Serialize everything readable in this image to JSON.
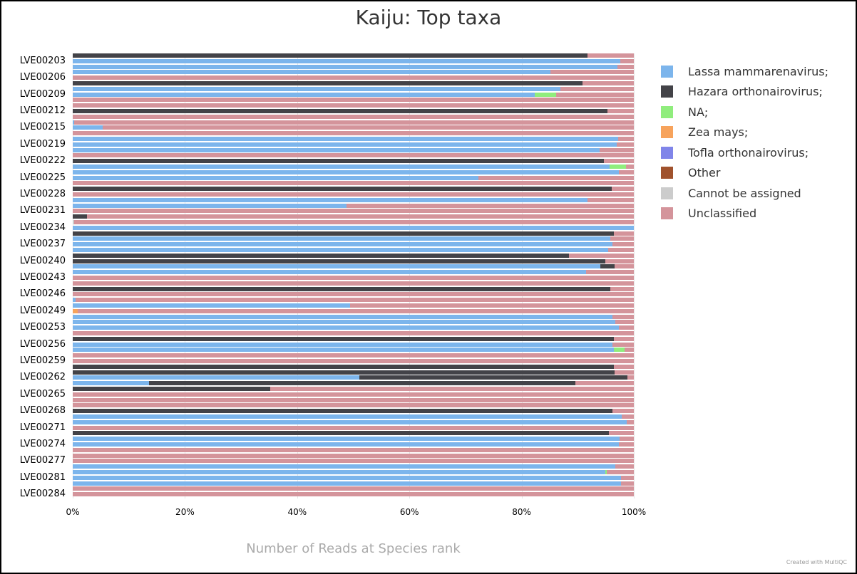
{
  "chart_data": {
    "type": "bar",
    "orientation": "horizontal",
    "stacking": "percent",
    "title": "Kaiju: Top taxa",
    "xlabel": "Number of Reads at Species rank",
    "ylabel": "",
    "xlim": [
      0,
      100
    ],
    "x_ticks": [
      "0%",
      "20%",
      "40%",
      "60%",
      "80%",
      "100%"
    ],
    "grid": true,
    "legend_position": "right",
    "series_names": [
      "Lassa mammarenavirus;",
      "Hazara orthonairovirus;",
      "NA;",
      "Zea mays;",
      "Tofla orthonairovirus;",
      "Other",
      "Cannot be assigned",
      "Unclassified"
    ],
    "colors": [
      "#7cb5ec",
      "#434348",
      "#90ed7d",
      "#f7a35c",
      "#8085e9",
      "#a0522d",
      "#cccccc",
      "#d4949b"
    ],
    "visible_category_labels": [
      "LVE00203",
      "LVE00206",
      "LVE00209",
      "LVE00212",
      "LVE00215",
      "LVE00219",
      "LVE00222",
      "LVE00225",
      "LVE00228",
      "LVE00231",
      "LVE00234",
      "LVE00237",
      "LVE00240",
      "LVE00243",
      "LVE00246",
      "LVE00249",
      "LVE00253",
      "LVE00256",
      "LVE00259",
      "LVE00262",
      "LVE00265",
      "LVE00268",
      "LVE00271",
      "LVE00274",
      "LVE00277",
      "LVE00281",
      "LVE00284"
    ],
    "label_every": 3,
    "label_offset": 1,
    "bars": [
      {
        "lassa": 0,
        "hazara": 91.8,
        "na": 0,
        "zea": 0,
        "cannot": 0
      },
      {
        "lassa": 97.6,
        "hazara": 0,
        "na": 0,
        "zea": 0,
        "cannot": 0
      },
      {
        "lassa": 97.1,
        "hazara": 0,
        "na": 0,
        "zea": 0,
        "cannot": 0
      },
      {
        "lassa": 85.1,
        "hazara": 0,
        "na": 0,
        "zea": 0,
        "cannot": 0
      },
      {
        "lassa": 0,
        "hazara": 0,
        "na": 0,
        "zea": 0,
        "cannot": 0
      },
      {
        "lassa": 0,
        "hazara": 90.9,
        "na": 0,
        "zea": 0,
        "cannot": 0
      },
      {
        "lassa": 86.9,
        "hazara": 0,
        "na": 0,
        "zea": 0,
        "cannot": 0
      },
      {
        "lassa": 82.4,
        "hazara": 0,
        "na": 3.7,
        "zea": 0,
        "cannot": 0
      },
      {
        "lassa": 0,
        "hazara": 0,
        "na": 0,
        "zea": 0,
        "cannot": 0
      },
      {
        "lassa": 0,
        "hazara": 0,
        "na": 0,
        "zea": 0,
        "cannot": 0
      },
      {
        "lassa": 0,
        "hazara": 95.3,
        "na": 0,
        "zea": 0,
        "cannot": 0
      },
      {
        "lassa": 0,
        "hazara": 0,
        "na": 0,
        "zea": 0,
        "cannot": 0
      },
      {
        "lassa": 0.3,
        "hazara": 0,
        "na": 0,
        "zea": 0,
        "cannot": 0
      },
      {
        "lassa": 5.3,
        "hazara": 0,
        "na": 0.1,
        "zea": 0,
        "cannot": 0
      },
      {
        "lassa": 0,
        "hazara": 0,
        "na": 0,
        "zea": 0,
        "cannot": 0
      },
      {
        "lassa": 97.2,
        "hazara": 0,
        "na": 0,
        "zea": 0,
        "cannot": 0
      },
      {
        "lassa": 96.9,
        "hazara": 0,
        "na": 0,
        "zea": 0,
        "cannot": 0
      },
      {
        "lassa": 93.9,
        "hazara": 0,
        "na": 0,
        "zea": 0,
        "cannot": 0
      },
      {
        "lassa": 0,
        "hazara": 0,
        "na": 0,
        "zea": 0,
        "cannot": 0
      },
      {
        "lassa": 0,
        "hazara": 94.6,
        "na": 0,
        "zea": 0,
        "cannot": 0
      },
      {
        "lassa": 95.7,
        "hazara": 0,
        "na": 2.9,
        "zea": 0,
        "cannot": 0
      },
      {
        "lassa": 97.3,
        "hazara": 0,
        "na": 0,
        "zea": 0,
        "cannot": 0
      },
      {
        "lassa": 72.3,
        "hazara": 0,
        "na": 0,
        "zea": 0,
        "cannot": 0
      },
      {
        "lassa": 0,
        "hazara": 0,
        "na": 0,
        "zea": 0,
        "cannot": 0
      },
      {
        "lassa": 0,
        "hazara": 96.0,
        "na": 0,
        "zea": 0,
        "cannot": 0
      },
      {
        "lassa": 0,
        "hazara": 0,
        "na": 0,
        "zea": 0,
        "cannot": 0
      },
      {
        "lassa": 91.8,
        "hazara": 0,
        "na": 0,
        "zea": 0,
        "cannot": 0
      },
      {
        "lassa": 48.8,
        "hazara": 0,
        "na": 0,
        "zea": 0,
        "cannot": 0
      },
      {
        "lassa": 0,
        "hazara": 0,
        "na": 0,
        "zea": 0,
        "cannot": 0
      },
      {
        "lassa": 0,
        "hazara": 2.6,
        "na": 0,
        "zea": 0,
        "cannot": 0
      },
      {
        "lassa": 0,
        "hazara": 0,
        "na": 0,
        "zea": 0,
        "cannot": 0.3
      },
      {
        "lassa": 100,
        "hazara": 0,
        "na": 0,
        "zea": 0,
        "cannot": 0
      },
      {
        "lassa": 0,
        "hazara": 96.5,
        "na": 0,
        "zea": 0,
        "cannot": 0
      },
      {
        "lassa": 95.8,
        "hazara": 0,
        "na": 0,
        "zea": 0,
        "cannot": 0
      },
      {
        "lassa": 96.2,
        "hazara": 0,
        "na": 0,
        "zea": 0,
        "cannot": 0
      },
      {
        "lassa": 95.4,
        "hazara": 0,
        "na": 0,
        "zea": 0,
        "cannot": 0
      },
      {
        "lassa": 0,
        "hazara": 88.4,
        "na": 0,
        "zea": 0,
        "cannot": 0
      },
      {
        "lassa": 0,
        "hazara": 94.9,
        "na": 0,
        "zea": 0,
        "cannot": 0
      },
      {
        "lassa": 94.0,
        "hazara": 2.6,
        "na": 0,
        "zea": 0,
        "cannot": 0
      },
      {
        "lassa": 91.5,
        "hazara": 0,
        "na": 0,
        "zea": 0,
        "cannot": 0
      },
      {
        "lassa": 0,
        "hazara": 0,
        "na": 0,
        "zea": 0,
        "cannot": 0
      },
      {
        "lassa": 0,
        "hazara": 0,
        "na": 0,
        "zea": 0,
        "cannot": 0
      },
      {
        "lassa": 0,
        "hazara": 95.8,
        "na": 0,
        "zea": 0,
        "cannot": 0
      },
      {
        "lassa": 0,
        "hazara": 0,
        "na": 0,
        "zea": 0,
        "cannot": 0
      },
      {
        "lassa": 0.5,
        "hazara": 0,
        "na": 0,
        "zea": 0,
        "cannot": 0
      },
      {
        "lassa": 49.4,
        "hazara": 0,
        "na": 0,
        "zea": 0,
        "cannot": 0
      },
      {
        "lassa": 0,
        "hazara": 0,
        "na": 0,
        "zea": 0.9,
        "cannot": 0
      },
      {
        "lassa": 96.2,
        "hazara": 0,
        "na": 0,
        "zea": 0,
        "cannot": 0
      },
      {
        "lassa": 96.7,
        "hazara": 0,
        "na": 0,
        "zea": 0,
        "cannot": 0
      },
      {
        "lassa": 97.3,
        "hazara": 0,
        "na": 0,
        "zea": 0,
        "cannot": 0
      },
      {
        "lassa": 0,
        "hazara": 0,
        "na": 0,
        "zea": 0,
        "cannot": 0
      },
      {
        "lassa": 0,
        "hazara": 96.4,
        "na": 0,
        "zea": 0,
        "cannot": 0
      },
      {
        "lassa": 96.2,
        "hazara": 0,
        "na": 0,
        "zea": 0,
        "cannot": 0
      },
      {
        "lassa": 96.5,
        "hazara": 0,
        "na": 1.8,
        "zea": 0,
        "cannot": 0
      },
      {
        "lassa": 0,
        "hazara": 0,
        "na": 0,
        "zea": 0,
        "cannot": 0
      },
      {
        "lassa": 0,
        "hazara": 0,
        "na": 0,
        "zea": 0,
        "cannot": 0
      },
      {
        "lassa": 0,
        "hazara": 96.5,
        "na": 0,
        "zea": 0,
        "cannot": 0
      },
      {
        "lassa": 0,
        "hazara": 96.6,
        "na": 0,
        "zea": 0,
        "cannot": 0
      },
      {
        "lassa": 51.1,
        "hazara": 47.7,
        "na": 0,
        "zea": 0,
        "cannot": 0
      },
      {
        "lassa": 13.6,
        "hazara": 76.0,
        "na": 0,
        "zea": 0,
        "cannot": 0
      },
      {
        "lassa": 0,
        "hazara": 35.2,
        "na": 0,
        "zea": 0,
        "cannot": 0
      },
      {
        "lassa": 0,
        "hazara": 0,
        "na": 0,
        "zea": 0,
        "cannot": 0
      },
      {
        "lassa": 0,
        "hazara": 0,
        "na": 0,
        "zea": 0,
        "cannot": 0
      },
      {
        "lassa": 0,
        "hazara": 0,
        "na": 0,
        "zea": 0,
        "cannot": 0
      },
      {
        "lassa": 0,
        "hazara": 96.2,
        "na": 0,
        "zea": 0,
        "cannot": 0
      },
      {
        "lassa": 97.8,
        "hazara": 0,
        "na": 0,
        "zea": 0,
        "cannot": 0
      },
      {
        "lassa": 98.7,
        "hazara": 0,
        "na": 0,
        "zea": 0,
        "cannot": 0
      },
      {
        "lassa": 0,
        "hazara": 0,
        "na": 0,
        "zea": 0,
        "cannot": 0
      },
      {
        "lassa": 0,
        "hazara": 95.5,
        "na": 0,
        "zea": 0,
        "cannot": 0
      },
      {
        "lassa": 97.5,
        "hazara": 0,
        "na": 0,
        "zea": 0,
        "cannot": 0
      },
      {
        "lassa": 97.3,
        "hazara": 0,
        "na": 0,
        "zea": 0,
        "cannot": 0
      },
      {
        "lassa": 0,
        "hazara": 0,
        "na": 0,
        "zea": 0,
        "cannot": 0
      },
      {
        "lassa": 0,
        "hazara": 0,
        "na": 0,
        "zea": 0,
        "cannot": 0
      },
      {
        "lassa": 0,
        "hazara": 0,
        "na": 0,
        "zea": 0,
        "cannot": 0
      },
      {
        "lassa": 96.7,
        "hazara": 0,
        "na": 0,
        "zea": 0,
        "cannot": 0
      },
      {
        "lassa": 94.9,
        "hazara": 0,
        "na": 0.3,
        "zea": 0,
        "cannot": 0
      },
      {
        "lassa": 97.7,
        "hazara": 0,
        "na": 0,
        "zea": 0,
        "cannot": 0
      },
      {
        "lassa": 97.7,
        "hazara": 0,
        "na": 0,
        "zea": 0,
        "cannot": 0
      },
      {
        "lassa": 0,
        "hazara": 0,
        "na": 0,
        "zea": 0,
        "cannot": 0
      },
      {
        "lassa": 0,
        "hazara": 0,
        "na": 0,
        "zea": 0,
        "cannot": 0
      }
    ],
    "note": "Unclassified fills the remainder of each bar to 100%."
  },
  "credit": "Created with MultiQC"
}
